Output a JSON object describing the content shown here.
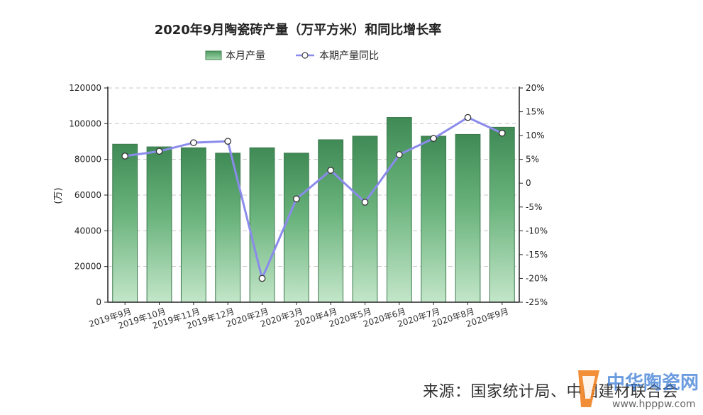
{
  "chart_data": {
    "type": "bar",
    "title": "2020年9月陶瓷砖产量（万平方米）和同比增长率",
    "categories": [
      "2019年9月",
      "2019年10月",
      "2019年11月",
      "2019年12月",
      "2020年2月",
      "2020年3月",
      "2020年4月",
      "2020年5月",
      "2020年6月",
      "2020年7月",
      "2020年8月",
      "2020年9月"
    ],
    "series": [
      {
        "name": "本月产量",
        "type": "bar",
        "axis": "left",
        "color": "#5aa36e",
        "values": [
          88500,
          87000,
          86500,
          83500,
          86500,
          83500,
          91000,
          93000,
          103500,
          93000,
          94000,
          98000
        ]
      },
      {
        "name": "本期产量同比",
        "type": "line",
        "axis": "right",
        "color": "#8b8bec",
        "values": [
          5.7,
          6.7,
          8.5,
          8.8,
          -20.0,
          -3.3,
          2.7,
          -4.0,
          6.0,
          9.4,
          13.8,
          10.5
        ]
      }
    ],
    "ylabel": "(万)",
    "ylim": [
      0,
      120000
    ],
    "yticks": [
      "0",
      "20000",
      "40000",
      "60000",
      "80000",
      "100000",
      "120000"
    ],
    "y2lim": [
      -25,
      20
    ],
    "y2ticks": [
      "-25%",
      "-20%",
      "-15%",
      "-10%",
      "-5%",
      "0",
      "5%",
      "10%",
      "15%",
      "20%"
    ],
    "grid": true,
    "legend_position": "top-center"
  },
  "source_text": "来源：国家统计局、中国建材联合会",
  "watermark": {
    "brand": "中华陶瓷网",
    "url": "www.hpppw.com"
  }
}
